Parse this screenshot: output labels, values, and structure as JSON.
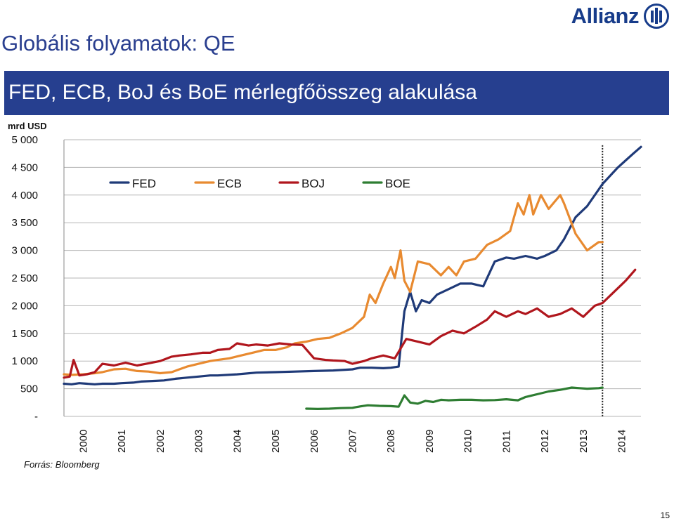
{
  "header": {
    "title": "Globális folyamatok: QE",
    "logo_text": "Allianz"
  },
  "banner": {
    "title": "FED, ECB, BoJ és BoE mérlegfőösszeg alakulása"
  },
  "footer": {
    "source": "Forrás: Bloomberg",
    "page_number": "15"
  },
  "colors": {
    "banner": "#263f8f",
    "title": "#2a3f8f",
    "FED": "#1f3a78",
    "ECB": "#e88a30",
    "BOJ": "#b0161d",
    "BOE": "#2e7d32"
  },
  "chart_data": {
    "type": "line",
    "ylabel": "mrd USD",
    "ylim": [
      0,
      5000
    ],
    "yticks": [
      {
        "value": 5000,
        "label": "5 000"
      },
      {
        "value": 4500,
        "label": "4 500"
      },
      {
        "value": 4000,
        "label": "4 000"
      },
      {
        "value": 3500,
        "label": "3 500"
      },
      {
        "value": 3000,
        "label": "3 000"
      },
      {
        "value": 2500,
        "label": "2 500"
      },
      {
        "value": 2000,
        "label": "2 000"
      },
      {
        "value": 1500,
        "label": "1 500"
      },
      {
        "value": 1000,
        "label": "1 000"
      },
      {
        "value": 500,
        "label": "500"
      },
      {
        "value": 0,
        "label": "-"
      }
    ],
    "xlim": [
      2000,
      2015
    ],
    "xticks": [
      "2000",
      "2001",
      "2002",
      "2003",
      "2004",
      "2005",
      "2006",
      "2007",
      "2008",
      "2009",
      "2010",
      "2011",
      "2012",
      "2013",
      "2014"
    ],
    "legend": [
      "FED",
      "ECB",
      "BOJ",
      "BOE"
    ],
    "legend_position": "top-left",
    "vertical_marker_x": 2014.0,
    "series": [
      {
        "name": "FED",
        "x": [
          2000.0,
          2000.2,
          2000.4,
          2000.6,
          2000.8,
          2001.0,
          2001.3,
          2001.5,
          2001.8,
          2002.0,
          2002.3,
          2002.6,
          2002.9,
          2003.2,
          2003.5,
          2003.8,
          2004.0,
          2004.5,
          2005.0,
          2005.5,
          2006.0,
          2006.5,
          2007.0,
          2007.5,
          2007.7,
          2008.0,
          2008.3,
          2008.5,
          2008.7,
          2008.85,
          2009.0,
          2009.15,
          2009.3,
          2009.5,
          2009.7,
          2010.0,
          2010.3,
          2010.6,
          2010.9,
          2011.2,
          2011.5,
          2011.7,
          2012.0,
          2012.3,
          2012.5,
          2012.8,
          2013.0,
          2013.3,
          2013.6,
          2014.0,
          2014.4,
          2014.8,
          2015.0
        ],
        "values": [
          590,
          580,
          600,
          590,
          580,
          590,
          590,
          600,
          610,
          630,
          640,
          650,
          680,
          700,
          720,
          740,
          740,
          760,
          790,
          800,
          810,
          820,
          830,
          850,
          880,
          880,
          870,
          880,
          900,
          1900,
          2250,
          1900,
          2100,
          2050,
          2200,
          2300,
          2400,
          2400,
          2350,
          2800,
          2870,
          2850,
          2900,
          2850,
          2900,
          3000,
          3200,
          3600,
          3800,
          4200,
          4500,
          4750,
          4870
        ]
      },
      {
        "name": "ECB",
        "x": [
          2000.0,
          2000.2,
          2000.5,
          2000.8,
          2001.0,
          2001.3,
          2001.6,
          2001.9,
          2002.2,
          2002.5,
          2002.8,
          2003.0,
          2003.2,
          2003.5,
          2003.8,
          2004.0,
          2004.3,
          2004.6,
          2004.9,
          2005.2,
          2005.5,
          2005.8,
          2006.0,
          2006.3,
          2006.6,
          2006.9,
          2007.2,
          2007.5,
          2007.8,
          2007.95,
          2008.1,
          2008.3,
          2008.5,
          2008.6,
          2008.75,
          2008.85,
          2009.0,
          2009.2,
          2009.5,
          2009.8,
          2010.0,
          2010.2,
          2010.4,
          2010.7,
          2011.0,
          2011.3,
          2011.6,
          2011.8,
          2011.95,
          2012.1,
          2012.2,
          2012.4,
          2012.6,
          2012.9,
          2013.0,
          2013.3,
          2013.6,
          2013.9,
          2014.0
        ],
        "values": [
          760,
          750,
          760,
          780,
          800,
          850,
          860,
          820,
          810,
          780,
          800,
          850,
          900,
          950,
          1000,
          1020,
          1050,
          1100,
          1150,
          1200,
          1200,
          1250,
          1320,
          1350,
          1400,
          1420,
          1500,
          1600,
          1800,
          2200,
          2050,
          2400,
          2700,
          2500,
          3000,
          2450,
          2250,
          2800,
          2750,
          2550,
          2700,
          2550,
          2800,
          2850,
          3100,
          3200,
          3350,
          3850,
          3650,
          4000,
          3650,
          4000,
          3750,
          4000,
          3850,
          3300,
          3000,
          3150,
          3150
        ]
      },
      {
        "name": "BOJ",
        "x": [
          2000.0,
          2000.15,
          2000.25,
          2000.4,
          2000.6,
          2000.8,
          2001.0,
          2001.3,
          2001.6,
          2001.9,
          2002.2,
          2002.5,
          2002.8,
          2003.0,
          2003.3,
          2003.6,
          2003.8,
          2004.0,
          2004.3,
          2004.5,
          2004.8,
          2005.0,
          2005.3,
          2005.6,
          2005.9,
          2006.2,
          2006.5,
          2006.8,
          2007.0,
          2007.3,
          2007.5,
          2007.8,
          2008.0,
          2008.3,
          2008.6,
          2008.9,
          2009.2,
          2009.5,
          2009.8,
          2010.1,
          2010.4,
          2010.7,
          2011.0,
          2011.2,
          2011.5,
          2011.8,
          2012.0,
          2012.3,
          2012.6,
          2012.9,
          2013.2,
          2013.5,
          2013.8,
          2014.0,
          2014.3,
          2014.6,
          2014.85
        ],
        "values": [
          700,
          720,
          1020,
          740,
          760,
          800,
          950,
          920,
          970,
          920,
          960,
          1000,
          1080,
          1100,
          1120,
          1150,
          1150,
          1200,
          1220,
          1320,
          1280,
          1300,
          1280,
          1320,
          1300,
          1290,
          1050,
          1020,
          1010,
          1000,
          950,
          1000,
          1050,
          1100,
          1050,
          1400,
          1350,
          1300,
          1450,
          1550,
          1500,
          1620,
          1750,
          1900,
          1800,
          1900,
          1850,
          1950,
          1800,
          1850,
          1950,
          1800,
          2000,
          2050,
          2250,
          2450,
          2650
        ]
      },
      {
        "name": "BOE",
        "x": [
          2006.3,
          2006.6,
          2006.9,
          2007.2,
          2007.5,
          2007.7,
          2007.9,
          2008.2,
          2008.5,
          2008.7,
          2008.85,
          2009.0,
          2009.2,
          2009.4,
          2009.6,
          2009.8,
          2010.0,
          2010.3,
          2010.6,
          2010.9,
          2011.2,
          2011.5,
          2011.8,
          2012.0,
          2012.3,
          2012.6,
          2012.9,
          2013.2,
          2013.4,
          2013.6,
          2013.9,
          2014.0
        ],
        "values": [
          140,
          135,
          140,
          150,
          155,
          180,
          200,
          190,
          185,
          175,
          380,
          250,
          230,
          280,
          260,
          300,
          290,
          300,
          300,
          290,
          295,
          310,
          290,
          350,
          400,
          450,
          480,
          520,
          510,
          500,
          510,
          520
        ]
      }
    ]
  }
}
